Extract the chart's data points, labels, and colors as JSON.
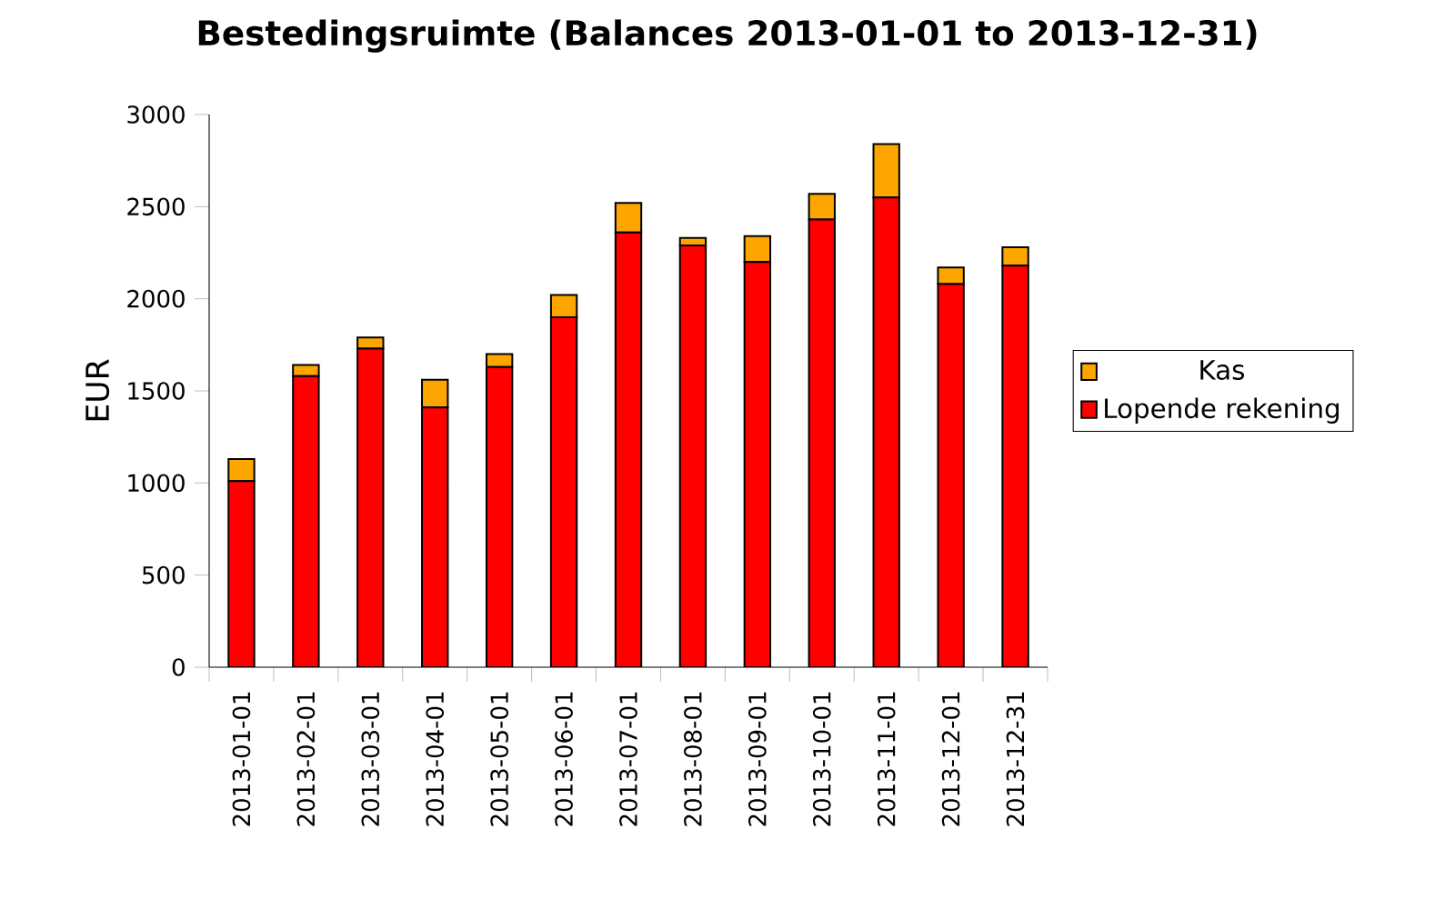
{
  "chart_data": {
    "type": "bar",
    "title": "Bestedingsruimte (Balances 2013-01-01 to 2013-12-31)",
    "ylabel": "EUR",
    "stacked": true,
    "legend": "right",
    "categories": [
      "2013-01-01",
      "2013-02-01",
      "2013-03-01",
      "2013-04-01",
      "2013-05-01",
      "2013-06-01",
      "2013-07-01",
      "2013-08-01",
      "2013-09-01",
      "2013-10-01",
      "2013-11-01",
      "2013-12-01",
      "2013-12-31"
    ],
    "series": [
      {
        "name": "Lopende rekening",
        "color": "#ff0000",
        "values": [
          1010,
          1580,
          1730,
          1410,
          1630,
          1900,
          2360,
          2290,
          2200,
          2430,
          2550,
          2080,
          2180
        ]
      },
      {
        "name": "Kas",
        "color": "#ffa500",
        "values": [
          120,
          60,
          60,
          150,
          70,
          120,
          160,
          40,
          140,
          140,
          290,
          90,
          100
        ]
      }
    ],
    "ylim": [
      0,
      3000
    ],
    "yticks": [
      0,
      500,
      1000,
      1500,
      2000,
      2500,
      3000
    ]
  }
}
